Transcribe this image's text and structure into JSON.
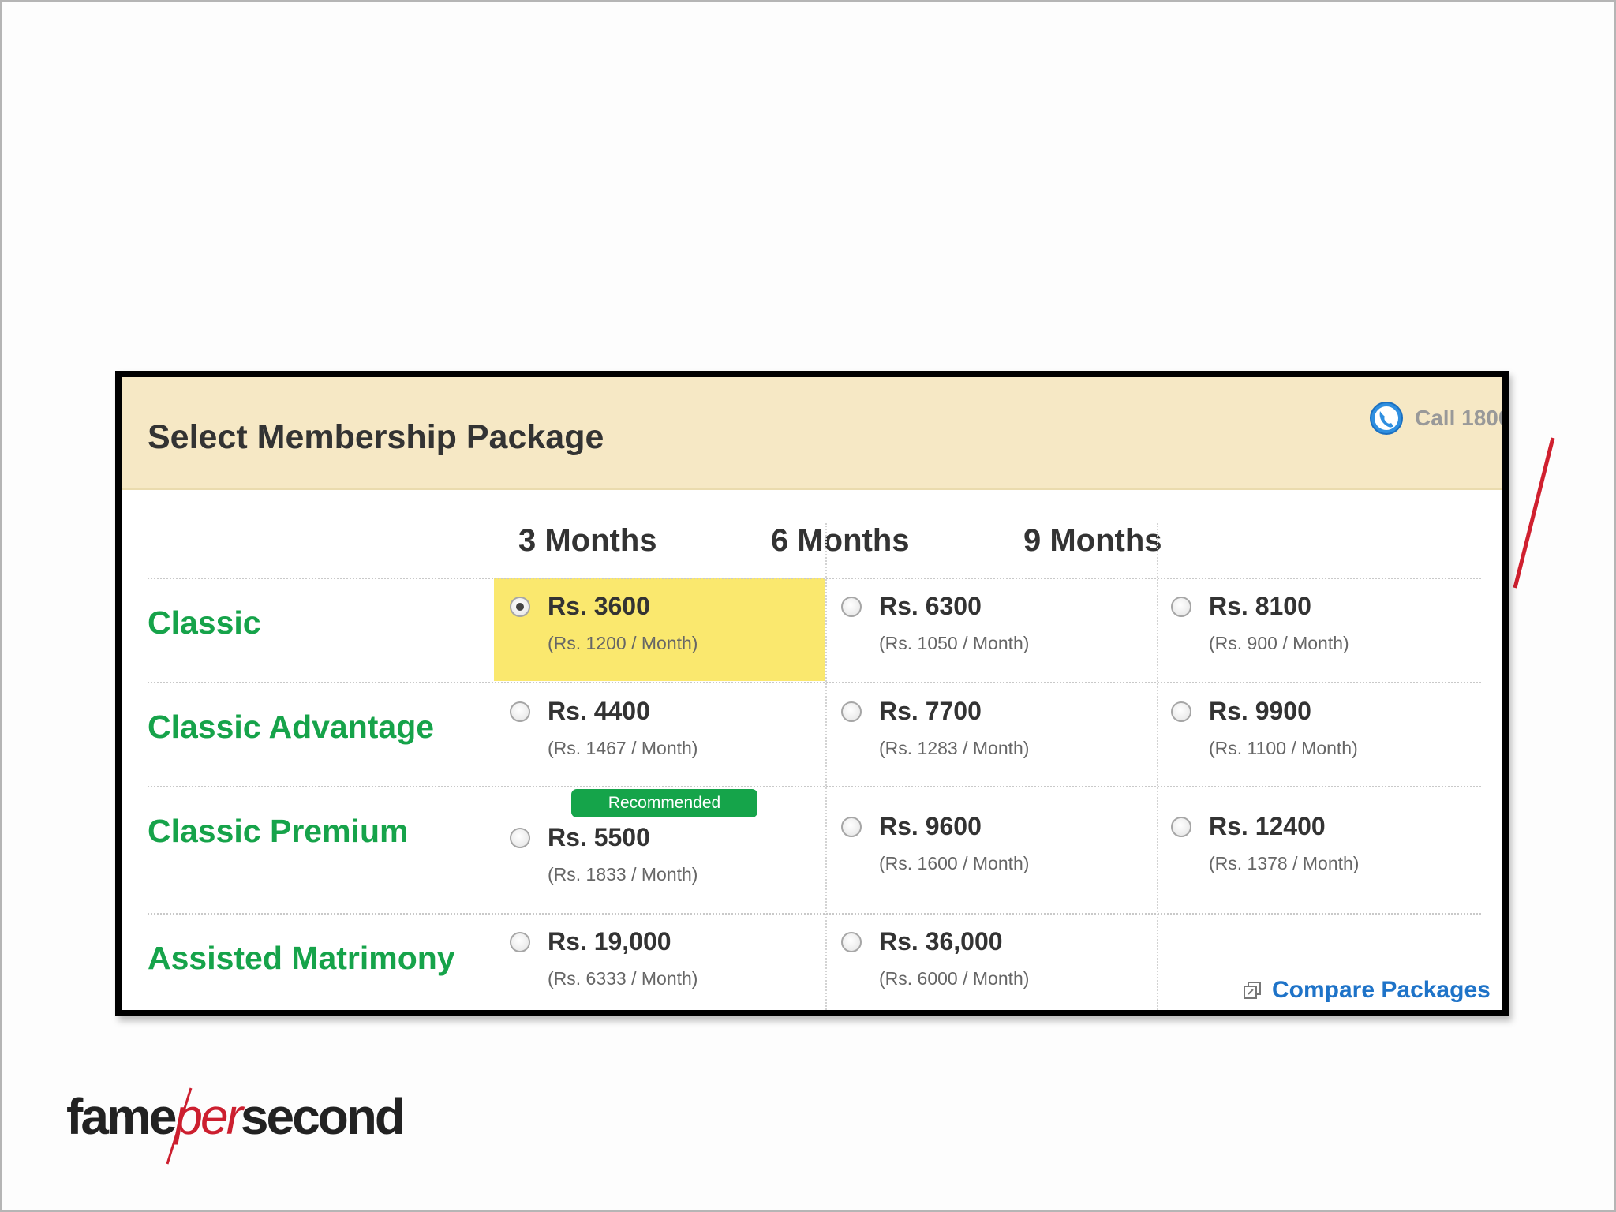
{
  "header": {
    "title": "Select Membership Package",
    "call_text": "Call 1800"
  },
  "columns": [
    "3 Months",
    "6 Months",
    "9 Months"
  ],
  "packages": [
    {
      "name": "Classic",
      "options": [
        {
          "price": "Rs. 3600",
          "per_month": "(Rs. 1200 / Month)",
          "selected": true
        },
        {
          "price": "Rs. 6300",
          "per_month": "(Rs. 1050 / Month)"
        },
        {
          "price": "Rs. 8100",
          "per_month": "(Rs. 900 / Month)"
        }
      ]
    },
    {
      "name": "Classic Advantage",
      "options": [
        {
          "price": "Rs. 4400",
          "per_month": "(Rs. 1467 / Month)"
        },
        {
          "price": "Rs. 7700",
          "per_month": "(Rs. 1283 / Month)"
        },
        {
          "price": "Rs. 9900",
          "per_month": "(Rs. 1100 / Month)"
        }
      ]
    },
    {
      "name": "Classic Premium",
      "badge": "Recommended",
      "options": [
        {
          "price": "Rs. 5500",
          "per_month": "(Rs. 1833 / Month)"
        },
        {
          "price": "Rs. 9600",
          "per_month": "(Rs. 1600 / Month)"
        },
        {
          "price": "Rs. 12400",
          "per_month": "(Rs. 1378 / Month)"
        }
      ]
    },
    {
      "name": "Assisted Matrimony",
      "options": [
        {
          "price": "Rs. 19,000",
          "per_month": "(Rs. 6333 / Month)"
        },
        {
          "price": "Rs. 36,000",
          "per_month": "(Rs. 6000 / Month)"
        }
      ]
    }
  ],
  "compare_link": "Compare Packages",
  "brand": {
    "part1": "fame",
    "part2": "per",
    "part3": "second"
  },
  "colors": {
    "header_bg": "#f6e8c5",
    "package_name": "#16a34a",
    "selected_highlight": "#fae86e",
    "badge_bg": "#15a44a",
    "link": "#1e73c8",
    "brand_accent": "#cc1f2f"
  },
  "icons": {
    "phone": "phone-icon",
    "compare": "compare-icon"
  }
}
